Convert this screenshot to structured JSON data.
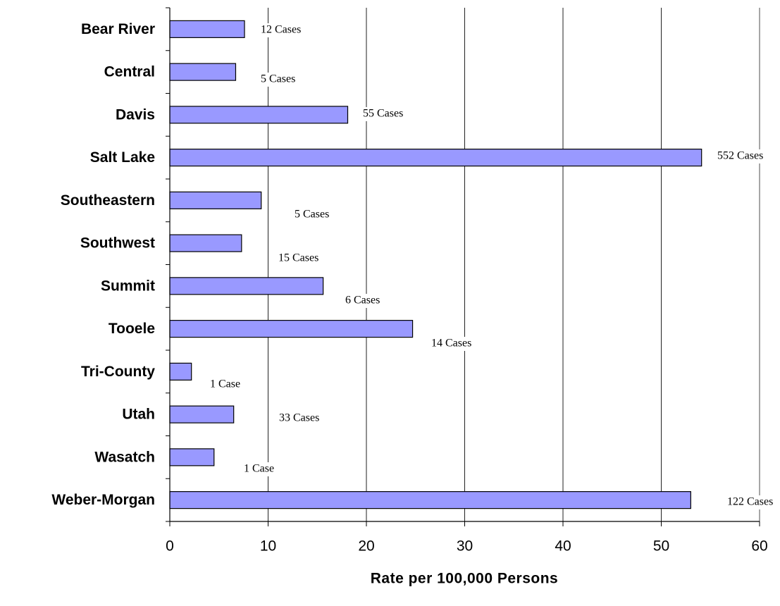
{
  "chart_data": {
    "type": "bar",
    "orientation": "horizontal",
    "categories": [
      "Bear River",
      "Central",
      "Davis",
      "Salt Lake",
      "Southeastern",
      "Southwest",
      "Summit",
      "Tooele",
      "Tri-County",
      "Utah",
      "Wasatch",
      "Weber-Morgan"
    ],
    "values": [
      7.6,
      6.7,
      18.1,
      54.1,
      9.3,
      7.3,
      15.6,
      24.7,
      2.2,
      6.5,
      4.5,
      53.0
    ],
    "annotations": [
      "12 Cases",
      "5 Cases",
      "55 Cases",
      "552 Cases",
      "5 Cases",
      "15 Cases",
      "6 Cases",
      "14 Cases",
      "1 Case",
      "33 Cases",
      "1 Case",
      "122 Cases"
    ],
    "color": "#9999ff",
    "xlabel": "Rate per 100,000 Persons",
    "xlim": [
      0,
      60
    ],
    "xticks": [
      0,
      10,
      20,
      30,
      40,
      50,
      60
    ],
    "grid": true
  }
}
